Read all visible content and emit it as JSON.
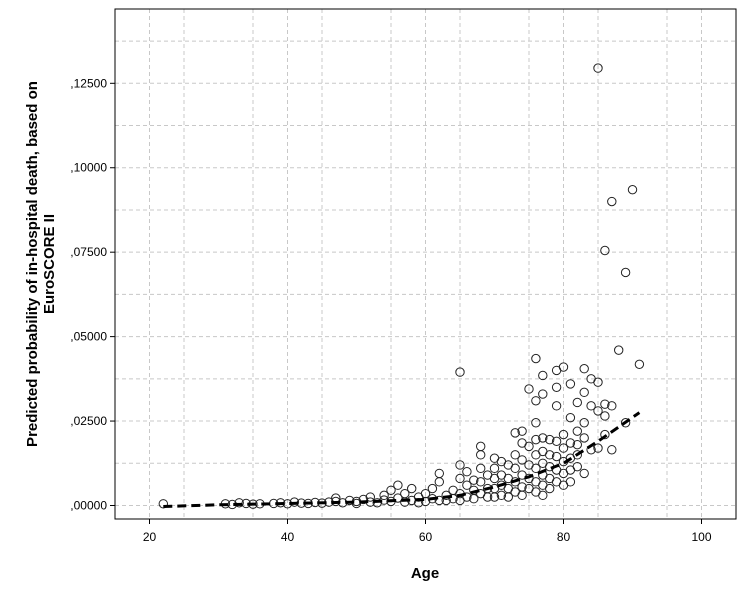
{
  "chart_data": {
    "type": "scatter",
    "xlabel": "Age",
    "ylabel_lines": [
      "Predicted probability of in-hospital death, based on",
      "EuroSCORE II"
    ],
    "xlim": [
      15,
      105
    ],
    "ylim": [
      -0.004,
      0.147
    ],
    "xticks": [
      20,
      40,
      60,
      80,
      100
    ],
    "xtick_labels": [
      "20",
      "40",
      "60",
      "80",
      "100"
    ],
    "yticks": [
      0,
      0.025,
      0.05,
      0.075,
      0.1,
      0.125
    ],
    "ytick_labels": [
      ",00000",
      ",02500",
      ",05000",
      ",07500",
      ",10000",
      ",12500"
    ],
    "grid": true,
    "grid_minor_x": [
      25,
      35,
      45,
      55,
      65,
      75,
      85,
      95
    ],
    "grid_minor_y": [
      0.0125,
      0.0375,
      0.0625,
      0.0875,
      0.1125,
      0.1375
    ],
    "marker": "open-circle",
    "fit_line": {
      "style": "dashed",
      "color": "#000000",
      "x": [
        22,
        30,
        40,
        50,
        60,
        65,
        70,
        75,
        80,
        85,
        91
      ],
      "y": [
        -0.0003,
        0.0002,
        0.0006,
        0.001,
        0.0018,
        0.003,
        0.0055,
        0.0085,
        0.0125,
        0.019,
        0.0275
      ]
    },
    "points": [
      [
        22,
        0.0005
      ],
      [
        31,
        0.0005
      ],
      [
        32,
        0.0003
      ],
      [
        33,
        0.0008
      ],
      [
        34,
        0.0006
      ],
      [
        35,
        0.0004
      ],
      [
        36,
        0.0005
      ],
      [
        38,
        0.0006
      ],
      [
        39,
        0.0008
      ],
      [
        40,
        0.0005
      ],
      [
        41,
        0.001
      ],
      [
        42,
        0.0007
      ],
      [
        43,
        0.0006
      ],
      [
        44,
        0.0009
      ],
      [
        45,
        0.0007
      ],
      [
        46,
        0.001
      ],
      [
        47,
        0.0012
      ],
      [
        47,
        0.0022
      ],
      [
        48,
        0.0008
      ],
      [
        49,
        0.0015
      ],
      [
        50,
        0.0006
      ],
      [
        50,
        0.0012
      ],
      [
        51,
        0.0018
      ],
      [
        52,
        0.001
      ],
      [
        52,
        0.0025
      ],
      [
        53,
        0.0008
      ],
      [
        54,
        0.0016
      ],
      [
        54,
        0.003
      ],
      [
        55,
        0.0012
      ],
      [
        55,
        0.0045
      ],
      [
        56,
        0.0022
      ],
      [
        56,
        0.006
      ],
      [
        57,
        0.001
      ],
      [
        57,
        0.0035
      ],
      [
        58,
        0.0015
      ],
      [
        58,
        0.005
      ],
      [
        59,
        0.0025
      ],
      [
        59,
        0.0008
      ],
      [
        60,
        0.0012
      ],
      [
        60,
        0.0035
      ],
      [
        61,
        0.002
      ],
      [
        61,
        0.005
      ],
      [
        62,
        0.0015
      ],
      [
        62,
        0.0095
      ],
      [
        62,
        0.007
      ],
      [
        63,
        0.003
      ],
      [
        63,
        0.0015
      ],
      [
        64,
        0.0045
      ],
      [
        64,
        0.002
      ],
      [
        65,
        0.0395
      ],
      [
        65,
        0.012
      ],
      [
        65,
        0.008
      ],
      [
        65,
        0.0035
      ],
      [
        65,
        0.0015
      ],
      [
        66,
        0.006
      ],
      [
        66,
        0.0025
      ],
      [
        66,
        0.01
      ],
      [
        67,
        0.0045
      ],
      [
        67,
        0.002
      ],
      [
        67,
        0.0075
      ],
      [
        68,
        0.0175
      ],
      [
        68,
        0.015
      ],
      [
        68,
        0.011
      ],
      [
        68,
        0.007
      ],
      [
        68,
        0.0035
      ],
      [
        69,
        0.009
      ],
      [
        69,
        0.005
      ],
      [
        69,
        0.0025
      ],
      [
        70,
        0.014
      ],
      [
        70,
        0.011
      ],
      [
        70,
        0.008
      ],
      [
        70,
        0.005
      ],
      [
        70,
        0.0025
      ],
      [
        71,
        0.013
      ],
      [
        71,
        0.009
      ],
      [
        71,
        0.006
      ],
      [
        71,
        0.003
      ],
      [
        72,
        0.012
      ],
      [
        72,
        0.008
      ],
      [
        72,
        0.005
      ],
      [
        72,
        0.0025
      ],
      [
        73,
        0.0215
      ],
      [
        73,
        0.015
      ],
      [
        73,
        0.011
      ],
      [
        73,
        0.007
      ],
      [
        73,
        0.004
      ],
      [
        74,
        0.022
      ],
      [
        74,
        0.0185
      ],
      [
        74,
        0.0135
      ],
      [
        74,
        0.009
      ],
      [
        74,
        0.0055
      ],
      [
        74,
        0.003
      ],
      [
        75,
        0.0345
      ],
      [
        75,
        0.0175
      ],
      [
        75,
        0.012
      ],
      [
        75,
        0.008
      ],
      [
        75,
        0.005
      ],
      [
        76,
        0.0435
      ],
      [
        76,
        0.031
      ],
      [
        76,
        0.0245
      ],
      [
        76,
        0.0195
      ],
      [
        76,
        0.015
      ],
      [
        76,
        0.011
      ],
      [
        76,
        0.007
      ],
      [
        76,
        0.004
      ],
      [
        77,
        0.0385
      ],
      [
        77,
        0.033
      ],
      [
        77,
        0.02
      ],
      [
        77,
        0.016
      ],
      [
        77,
        0.0125
      ],
      [
        77,
        0.009
      ],
      [
        77,
        0.006
      ],
      [
        77,
        0.003
      ],
      [
        78,
        0.0195
      ],
      [
        78,
        0.015
      ],
      [
        78,
        0.0115
      ],
      [
        78,
        0.008
      ],
      [
        78,
        0.005
      ],
      [
        79,
        0.04
      ],
      [
        79,
        0.035
      ],
      [
        79,
        0.0295
      ],
      [
        79,
        0.019
      ],
      [
        79,
        0.0145
      ],
      [
        79,
        0.0105
      ],
      [
        79,
        0.007
      ],
      [
        80,
        0.041
      ],
      [
        80,
        0.021
      ],
      [
        80,
        0.017
      ],
      [
        80,
        0.013
      ],
      [
        80,
        0.0095
      ],
      [
        80,
        0.006
      ],
      [
        81,
        0.036
      ],
      [
        81,
        0.026
      ],
      [
        81,
        0.0185
      ],
      [
        81,
        0.014
      ],
      [
        81,
        0.0105
      ],
      [
        81,
        0.007
      ],
      [
        82,
        0.0305
      ],
      [
        82,
        0.022
      ],
      [
        82,
        0.018
      ],
      [
        82,
        0.015
      ],
      [
        82,
        0.0115
      ],
      [
        83,
        0.0405
      ],
      [
        83,
        0.0335
      ],
      [
        83,
        0.0245
      ],
      [
        83,
        0.02
      ],
      [
        83,
        0.0095
      ],
      [
        84,
        0.0375
      ],
      [
        84,
        0.0295
      ],
      [
        84,
        0.0165
      ],
      [
        85,
        0.1295
      ],
      [
        85,
        0.0365
      ],
      [
        85,
        0.028
      ],
      [
        85,
        0.017
      ],
      [
        86,
        0.0755
      ],
      [
        86,
        0.03
      ],
      [
        86,
        0.0265
      ],
      [
        86,
        0.021
      ],
      [
        87,
        0.09
      ],
      [
        87,
        0.0295
      ],
      [
        87,
        0.0165
      ],
      [
        88,
        0.046
      ],
      [
        89,
        0.069
      ],
      [
        89,
        0.0245
      ],
      [
        90,
        0.0935
      ],
      [
        91,
        0.0418
      ]
    ]
  }
}
